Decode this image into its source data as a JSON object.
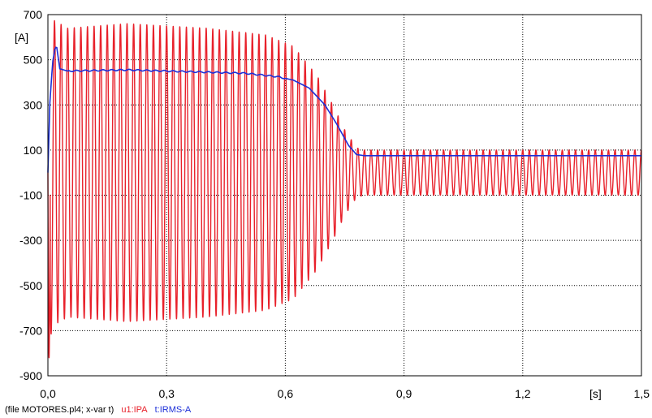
{
  "chart_data": {
    "type": "line",
    "title": "",
    "xlabel": "[s]",
    "ylabel": "[A]",
    "xlim": [
      0,
      1.5
    ],
    "ylim": [
      -900,
      700
    ],
    "grid": true,
    "x_ticks": [
      "0,0",
      "0,3",
      "0,6",
      "0,9",
      "1,2",
      "1,5"
    ],
    "y_ticks": [
      "700",
      "500",
      "300",
      "100",
      "-100",
      "-300",
      "-500",
      "-700",
      "-900"
    ],
    "series": [
      {
        "name": "u1:IPA",
        "color": "#e8212b",
        "frequency_hz": 60,
        "envelope_x": [
          0.0,
          0.01,
          0.05,
          0.2,
          0.4,
          0.55,
          0.62,
          0.68,
          0.72,
          0.75,
          0.78,
          0.8,
          1.5
        ],
        "envelope_y": [
          880,
          680,
          640,
          660,
          640,
          610,
          560,
          430,
          300,
          190,
          110,
          100,
          100
        ],
        "offset_y": 0
      },
      {
        "name": "t:IRMS-A",
        "color": "#1c2fd8",
        "x": [
          0.0,
          0.005,
          0.012,
          0.018,
          0.022,
          0.03,
          0.05,
          0.1,
          0.2,
          0.3,
          0.4,
          0.5,
          0.58,
          0.62,
          0.66,
          0.7,
          0.73,
          0.76,
          0.78,
          0.8,
          0.85,
          1.0,
          1.2,
          1.5
        ],
        "y": [
          0,
          310,
          490,
          550,
          560,
          460,
          450,
          452,
          455,
          450,
          445,
          440,
          425,
          410,
          375,
          300,
          215,
          120,
          80,
          75,
          75,
          75,
          75,
          75
        ]
      }
    ]
  },
  "footer": {
    "file": "(file MOTORES.pl4; x-var t)",
    "series1": "u1:IPA",
    "series2": "t:IRMS-A"
  },
  "colors": {
    "series1": "#e8212b",
    "series2": "#1c2fd8",
    "grid": "#000000"
  }
}
